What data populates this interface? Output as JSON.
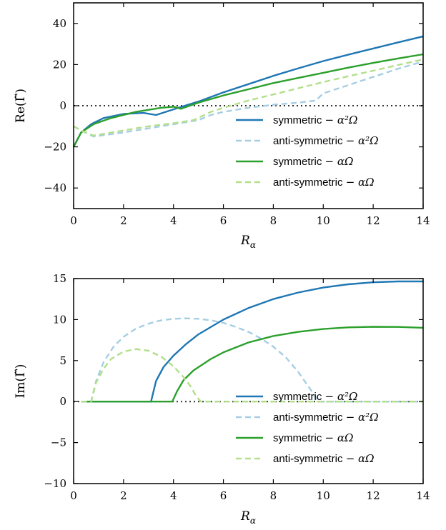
{
  "chart_data": [
    {
      "type": "line",
      "xlabel": "R",
      "xlabel_sub": "α",
      "ylabel": "Re(Γ̃)",
      "xlim": [
        0,
        14
      ],
      "ylim": [
        -50,
        50
      ],
      "xticks": [
        0,
        2,
        4,
        6,
        8,
        10,
        12,
        14
      ],
      "yticks": [
        -40,
        -20,
        0,
        20,
        40
      ],
      "ytick_labels": [
        "−40",
        "−20",
        "0",
        "20",
        "40"
      ],
      "grid": false,
      "legend_position": "lower-right",
      "reference_line": {
        "y": 0,
        "style": "dotted"
      },
      "series": [
        {
          "name": "symmetric − α²Ω",
          "legend_text": "symmetric",
          "legend_math": "α²Ω",
          "color": "#1f77b4",
          "dash": "solid",
          "x": [
            0,
            0.3,
            0.7,
            1.2,
            2,
            2.8,
            3.3,
            4.2,
            5,
            6,
            7,
            8,
            9,
            10,
            11,
            12,
            13,
            14
          ],
          "y": [
            -20,
            -13,
            -9,
            -6,
            -4,
            -3.5,
            -4.5,
            -1,
            2,
            6.5,
            10.5,
            14.5,
            18.2,
            21.7,
            24.8,
            27.8,
            30.8,
            33.7
          ]
        },
        {
          "name": "anti-symmetric − α²Ω",
          "legend_text": "anti-symmetric",
          "legend_math": "α²Ω",
          "color": "#a6cee3",
          "dash": "dashed",
          "x": [
            0,
            0.3,
            0.8,
            2,
            3,
            4,
            5,
            5.5,
            6,
            7,
            8,
            9,
            9.7,
            10,
            11,
            12,
            13,
            14
          ],
          "y": [
            -10,
            -12,
            -15,
            -13,
            -11,
            -9,
            -7,
            -4.5,
            -3,
            -1,
            0.5,
            1.5,
            2.5,
            6,
            10,
            14,
            18,
            21.5
          ]
        },
        {
          "name": "symmetric − αΩ",
          "legend_text": "symmetric",
          "legend_math": "αΩ",
          "color": "#2ca02c",
          "dash": "solid",
          "x": [
            0,
            0.3,
            0.8,
            1.5,
            2.5,
            3.5,
            4,
            4.3,
            5,
            6,
            7,
            8,
            9,
            10,
            11,
            12,
            13,
            14
          ],
          "y": [
            -20,
            -13,
            -9,
            -6,
            -3,
            -1,
            -0.5,
            -1.5,
            1.5,
            5,
            8,
            11,
            13.5,
            16,
            18.5,
            20.8,
            23,
            25
          ]
        },
        {
          "name": "anti-symmetric − αΩ",
          "legend_text": "anti-symmetric",
          "legend_math": "αΩ",
          "color": "#b2df8a",
          "dash": "dashed",
          "x": [
            0,
            0.3,
            0.8,
            2,
            3,
            4,
            4.8,
            5.5,
            6,
            7,
            8,
            9,
            10,
            11,
            12,
            13,
            14
          ],
          "y": [
            -10,
            -12,
            -14.5,
            -12,
            -10,
            -8.5,
            -7,
            -3,
            -1,
            2.5,
            5.5,
            8.5,
            11.5,
            14.3,
            17,
            19.8,
            22.5
          ]
        }
      ]
    },
    {
      "type": "line",
      "xlabel": "R",
      "xlabel_sub": "α",
      "ylabel": "Im(Γ̃)",
      "xlim": [
        0,
        14
      ],
      "ylim": [
        -10,
        15
      ],
      "xticks": [
        0,
        2,
        4,
        6,
        8,
        10,
        12,
        14
      ],
      "yticks": [
        -10,
        -5,
        0,
        5,
        10,
        15
      ],
      "ytick_labels": [
        "−10",
        "−5",
        "0",
        "5",
        "10",
        "15"
      ],
      "grid": false,
      "legend_position": "lower-right",
      "reference_line": {
        "y": 0,
        "style": "dotted"
      },
      "series": [
        {
          "name": "symmetric − α²Ω",
          "legend_text": "symmetric",
          "legend_math": "α²Ω",
          "color": "#1f77b4",
          "dash": "solid",
          "x": [
            0.3,
            3.1,
            3.3,
            3.6,
            4,
            4.5,
            5,
            6,
            7,
            8,
            9,
            10,
            11,
            12,
            13,
            14
          ],
          "y": [
            0,
            0,
            2.5,
            4.2,
            5.6,
            7,
            8.2,
            10,
            11.4,
            12.5,
            13.3,
            13.9,
            14.3,
            14.55,
            14.65,
            14.65
          ]
        },
        {
          "name": "anti-symmetric − α²Ω",
          "legend_text": "anti-symmetric",
          "legend_math": "α²Ω",
          "color": "#a6cee3",
          "dash": "dashed",
          "x": [
            0.3,
            0.7,
            0.9,
            1.2,
            1.6,
            2,
            2.5,
            3,
            3.5,
            4,
            4.5,
            5,
            5.5,
            6,
            6.5,
            7,
            7.5,
            8,
            8.5,
            9,
            9.3,
            9.6,
            9.8,
            10,
            14
          ],
          "y": [
            0,
            0,
            2.5,
            4.8,
            6.7,
            7.9,
            8.9,
            9.5,
            9.9,
            10.1,
            10.15,
            10.1,
            9.9,
            9.6,
            9.1,
            8.5,
            7.7,
            6.7,
            5.4,
            3.6,
            2.3,
            1,
            0,
            0,
            0
          ]
        },
        {
          "name": "symmetric − αΩ",
          "legend_text": "symmetric",
          "legend_math": "αΩ",
          "color": "#2ca02c",
          "dash": "solid",
          "x": [
            0.3,
            3.95,
            4.15,
            4.4,
            4.8,
            5.5,
            6,
            7,
            8,
            9,
            10,
            11,
            12,
            13,
            14
          ],
          "y": [
            0,
            0,
            1.3,
            2.6,
            3.8,
            5.2,
            6,
            7.2,
            8,
            8.5,
            8.85,
            9.05,
            9.12,
            9.1,
            9
          ]
        },
        {
          "name": "anti-symmetric − αΩ",
          "legend_text": "anti-symmetric",
          "legend_math": "αΩ",
          "color": "#b2df8a",
          "dash": "dashed",
          "x": [
            0.3,
            0.7,
            0.9,
            1.2,
            1.5,
            2,
            2.5,
            3,
            3.5,
            4,
            4.4,
            4.7,
            4.9,
            5.1,
            14
          ],
          "y": [
            0,
            0,
            2.3,
            4,
            5.2,
            6.1,
            6.4,
            6.2,
            5.5,
            4.3,
            3,
            1.8,
            0.7,
            0,
            0
          ]
        }
      ]
    }
  ]
}
